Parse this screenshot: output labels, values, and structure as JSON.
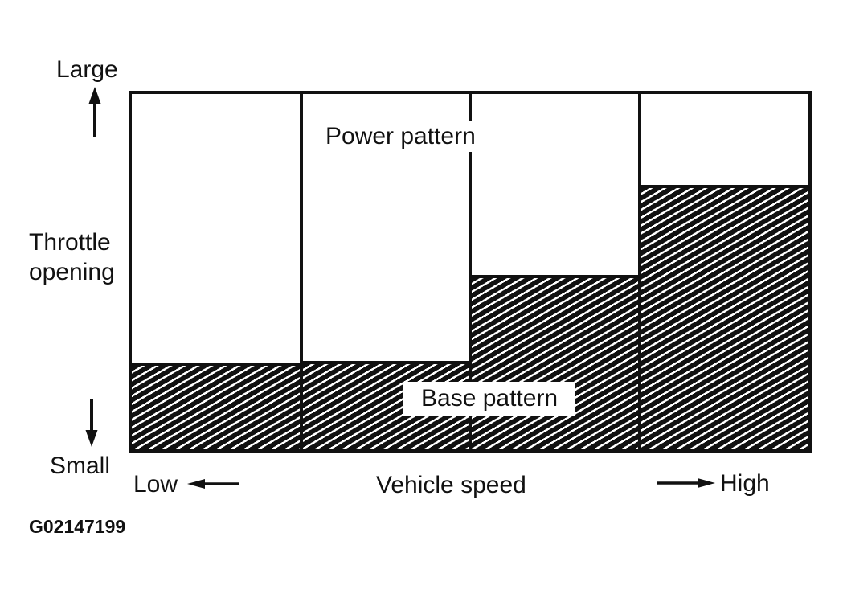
{
  "figure_id": "G02147199",
  "labels": {
    "large": "Large",
    "small": "Small",
    "throttle_opening": "Throttle opening",
    "low": "Low",
    "high": "High",
    "vehicle_speed": "Vehicle speed",
    "power_pattern": "Power pattern",
    "base_pattern": "Base pattern"
  },
  "colors": {
    "ink": "#111111",
    "background": "#ffffff"
  },
  "chart_data": {
    "type": "area",
    "subtype": "stepped-region-shift-pattern",
    "title": "",
    "xlabel": "Vehicle speed",
    "x_direction_labels": [
      "Low",
      "High"
    ],
    "ylabel": "Throttle opening",
    "y_direction_labels": [
      "Small",
      "Large"
    ],
    "ylim": [
      0,
      1
    ],
    "columns": 4,
    "series": [
      {
        "name": "Base pattern",
        "region": "lower-hatched",
        "values": [
          0.245,
          0.25,
          0.49,
          0.745
        ]
      },
      {
        "name": "Power pattern",
        "region": "upper-white",
        "values": [
          0.755,
          0.75,
          0.51,
          0.255
        ]
      }
    ],
    "grid": false,
    "legend": false
  }
}
